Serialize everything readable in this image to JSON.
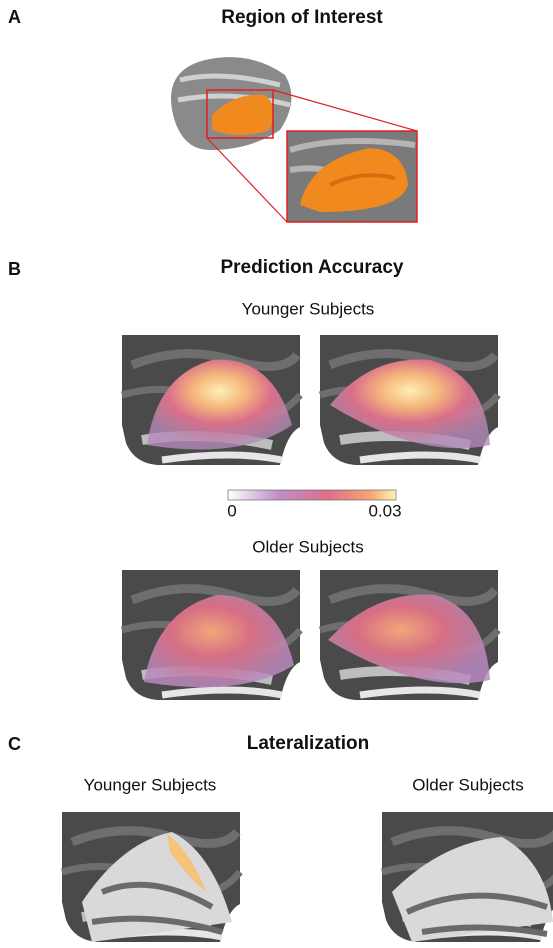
{
  "panels": [
    {
      "label": "A",
      "title": "Region of Interest"
    },
    {
      "label": "B",
      "title": "Prediction Accuracy",
      "groups": [
        "Younger Subjects",
        "Older Subjects"
      ],
      "colorbar": {
        "min_label": "0",
        "max_label": "0.03"
      }
    },
    {
      "label": "C",
      "title": "Lateralization",
      "groups": [
        "Younger Subjects",
        "Older Subjects"
      ]
    }
  ]
}
